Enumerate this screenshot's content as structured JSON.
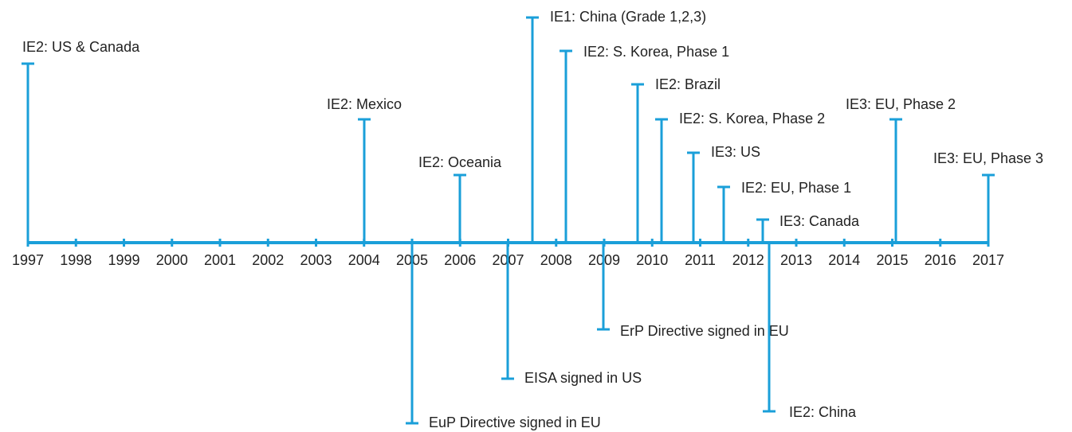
{
  "timeline": {
    "years": [
      1997,
      1998,
      1999,
      2000,
      2001,
      2002,
      2003,
      2004,
      2005,
      2006,
      2007,
      2008,
      2009,
      2010,
      2011,
      2012,
      2013,
      2014,
      2015,
      2016,
      2017
    ],
    "events_above": [
      {
        "label": "IE2: US & Canada"
      },
      {
        "label": "IE2: Mexico"
      },
      {
        "label": "IE2: Oceania"
      },
      {
        "label": "IE1: China (Grade 1,2,3)"
      },
      {
        "label": "IE2: S. Korea, Phase 1"
      },
      {
        "label": "IE2: Brazil"
      },
      {
        "label": "IE2: S. Korea, Phase 2"
      },
      {
        "label": "IE3: US"
      },
      {
        "label": "IE2: EU, Phase 1"
      },
      {
        "label": "IE3: Canada"
      },
      {
        "label": "IE3: EU, Phase 2"
      },
      {
        "label": "IE3: EU, Phase 3"
      }
    ],
    "events_below": [
      {
        "label": "EuP Directive signed in EU"
      },
      {
        "label": "EISA signed in US"
      },
      {
        "label": "ErP Directive signed in EU"
      },
      {
        "label": "IE2: China"
      }
    ]
  }
}
